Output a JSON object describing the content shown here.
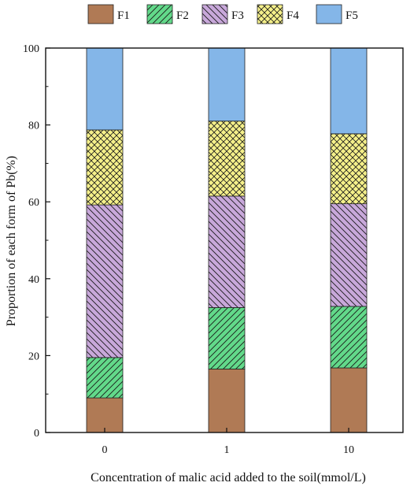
{
  "chart_data": {
    "type": "bar",
    "stacked": true,
    "categories": [
      "0",
      "1",
      "10"
    ],
    "series": [
      {
        "name": "F1",
        "values": [
          9.0,
          16.5,
          16.8
        ],
        "color": "#B07A55",
        "pattern": "solid"
      },
      {
        "name": "F2",
        "values": [
          10.5,
          16.0,
          16.0
        ],
        "color": "#62D98A",
        "pattern": "diagonal-up"
      },
      {
        "name": "F3",
        "values": [
          39.7,
          29.0,
          26.7
        ],
        "color": "#C8A8DA",
        "pattern": "diagonal-down"
      },
      {
        "name": "F4",
        "values": [
          19.5,
          19.5,
          18.2
        ],
        "color": "#F5F08A",
        "pattern": "crosshatch"
      },
      {
        "name": "F5",
        "values": [
          21.3,
          19.0,
          22.3
        ],
        "color": "#84B6E8",
        "pattern": "solid"
      }
    ],
    "xlabel": "Concentration of malic acid added to the soil(mmol/L)",
    "ylabel": "Proportion of each form of Pb(%)",
    "ylim": [
      0,
      100
    ],
    "yticks": [
      "0",
      "20",
      "40",
      "60",
      "80",
      "100"
    ],
    "grid": false,
    "legend_position": "top"
  }
}
